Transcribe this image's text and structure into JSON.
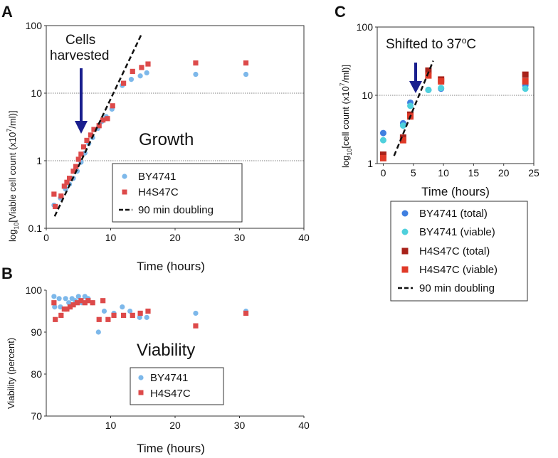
{
  "panels": {
    "A": "A",
    "B": "B",
    "C": "C"
  },
  "panel_a": {
    "ylabel_pre": "log",
    "ylabel_sub": "10",
    "ylabel_mid": "[Viable cell count (x10",
    "ylabel_sup": "7",
    "ylabel_post": "/ml)]",
    "annotation_line1": "Cells",
    "annotation_line2": "harvested",
    "big_label": "Growth",
    "legend": [
      "BY4741",
      "H4S47C",
      "90 min doubling"
    ]
  },
  "panel_b": {
    "big_label": "Viability",
    "legend": [
      "BY4741",
      "H4S47C"
    ]
  },
  "panel_c": {
    "ylabel_pre": "log",
    "ylabel_sub": "10",
    "ylabel_mid": "[cell count (x10",
    "ylabel_sup": "7",
    "ylabel_post": "/ml)]",
    "annotation_pre": "Shifted to 37",
    "annotation_sup": "o",
    "annotation_post": "C",
    "legend": [
      "BY4741 (total)",
      "BY4741 (viable)",
      "H4S47C (total)",
      "H4S47C (viable)",
      "90 min doubling"
    ]
  },
  "colors": {
    "by_light": "#7db8ea",
    "by_total": "#3f7fe0",
    "by_viable": "#4fd0dc",
    "h4_light": "#dd4a4a",
    "h4_total": "#a8221a",
    "h4_viable": "#e03a28",
    "arrow": "#1a1f8e"
  },
  "chart_data": [
    {
      "id": "A",
      "type": "scatter",
      "title": "Growth",
      "xlabel": "Time (hours)",
      "ylabel": "log10[Viable cell count (x10^7/ml)]",
      "yscale": "log",
      "xlim": [
        0,
        40
      ],
      "ylim": [
        0.1,
        100
      ],
      "xticks": [
        0,
        10,
        20,
        30,
        40
      ],
      "yticks": [
        0.1,
        1,
        10,
        100
      ],
      "ytick_labels": [
        "0.1",
        "1",
        "10",
        "100"
      ],
      "hgrid": [
        1,
        10
      ],
      "annotation_arrow_x": 5.5,
      "series": [
        {
          "name": "BY4741",
          "marker": "circle",
          "color_key": "by_light",
          "x": [
            1.2,
            2.2,
            3.0,
            3.6,
            4.2,
            4.8,
            5.4,
            6.0,
            6.6,
            7.2,
            8.0,
            8.6,
            9.3,
            10.2,
            11.8,
            13.2,
            14.6,
            15.6,
            23.2,
            31.0
          ],
          "y": [
            0.22,
            0.28,
            0.38,
            0.45,
            0.55,
            0.7,
            0.95,
            1.3,
            1.8,
            2.2,
            3.0,
            3.8,
            4.5,
            5.8,
            13.0,
            16.0,
            18.0,
            20.0,
            19.0,
            19.0
          ]
        },
        {
          "name": "H4S47C",
          "marker": "square",
          "color_key": "h4_light",
          "x": [
            1.2,
            1.4,
            2.3,
            2.8,
            3.2,
            3.6,
            4.2,
            4.6,
            5.0,
            5.4,
            5.8,
            6.3,
            6.9,
            7.4,
            8.2,
            8.8,
            9.5,
            10.3,
            12.0,
            13.4,
            14.8,
            15.8,
            23.2,
            31.0
          ],
          "y": [
            0.32,
            0.21,
            0.3,
            0.42,
            0.48,
            0.55,
            0.7,
            0.82,
            1.05,
            1.25,
            1.6,
            2.0,
            2.4,
            2.9,
            3.3,
            4.0,
            4.2,
            6.5,
            14.0,
            21.0,
            24.0,
            27.0,
            28.0,
            28.0
          ]
        },
        {
          "name": "90 min doubling",
          "style": "dashed",
          "x": [
            1.3,
            14.8
          ],
          "y": [
            0.15,
            75
          ]
        }
      ]
    },
    {
      "id": "B",
      "type": "scatter",
      "title": "Viability",
      "xlabel": "Time (hours)",
      "ylabel": "Viability (percent)",
      "xlim": [
        0,
        40
      ],
      "ylim": [
        70,
        100
      ],
      "xticks": [
        10,
        20,
        30,
        40
      ],
      "yticks": [
        70,
        80,
        90,
        100
      ],
      "series": [
        {
          "name": "BY4741",
          "marker": "circle",
          "color_key": "by_light",
          "x": [
            1.2,
            1.3,
            2.0,
            2.2,
            3.0,
            3.5,
            4.0,
            4.5,
            5.0,
            5.5,
            6.0,
            6.5,
            7.2,
            8.1,
            9.0,
            10.5,
            11.8,
            13.0,
            14.5,
            15.6,
            23.2,
            31.0
          ],
          "y": [
            98.5,
            96.0,
            98.0,
            96.0,
            98.0,
            97.0,
            98.0,
            97.5,
            98.5,
            97.0,
            98.5,
            98.0,
            97.0,
            90.0,
            95.0,
            94.5,
            96.0,
            95.0,
            93.5,
            93.5,
            94.5,
            95.0
          ],
          "_note": "values read off gridless axes"
        },
        {
          "name": "H4S47C",
          "marker": "square",
          "color_key": "h4_light",
          "x": [
            1.2,
            1.4,
            2.3,
            2.8,
            3.2,
            3.7,
            4.2,
            4.8,
            5.4,
            6.0,
            6.5,
            7.2,
            8.2,
            8.8,
            9.6,
            10.5,
            12.0,
            13.4,
            14.6,
            15.8,
            23.2,
            31.0
          ],
          "y": [
            97.0,
            93.0,
            94.0,
            95.5,
            95.5,
            96.0,
            96.5,
            97.0,
            97.5,
            97.0,
            97.5,
            97.0,
            93.0,
            97.5,
            93.0,
            94.0,
            94.0,
            94.0,
            94.5,
            95.0,
            91.5,
            94.5
          ]
        }
      ]
    },
    {
      "id": "C",
      "type": "scatter",
      "xlabel": "Time (hours)",
      "ylabel": "log10[cell count (x10^7/ml)]",
      "yscale": "log",
      "xlim": [
        -1,
        25
      ],
      "ylim": [
        1,
        100
      ],
      "xticks": [
        0,
        5,
        10,
        15,
        20,
        25
      ],
      "yticks": [
        1,
        10,
        100
      ],
      "ytick_labels": [
        "1",
        "10",
        "100"
      ],
      "hgrid": [
        10
      ],
      "annotation_arrow_x": 4.5,
      "series": [
        {
          "name": "BY4741 (total)",
          "marker": "circle",
          "color_key": "by_total",
          "x": [
            0,
            3.3,
            4.5,
            7.5,
            9.6,
            23.6
          ],
          "y": [
            2.8,
            3.9,
            7.8,
            12.0,
            12.5,
            14.0
          ]
        },
        {
          "name": "BY4741 (viable)",
          "marker": "circle",
          "color_key": "by_viable",
          "x": [
            0,
            3.3,
            4.5,
            7.5,
            9.6,
            23.6
          ],
          "y": [
            2.2,
            3.6,
            7.0,
            12.0,
            12.8,
            12.5
          ]
        },
        {
          "name": "H4S47C (total)",
          "marker": "square",
          "color_key": "h4_total",
          "x": [
            0,
            3.3,
            4.5,
            7.5,
            9.6,
            23.6
          ],
          "y": [
            1.35,
            2.4,
            5.2,
            23.0,
            17.0,
            20.0
          ]
        },
        {
          "name": "H4S47C (viable)",
          "marker": "square",
          "color_key": "h4_viable",
          "x": [
            0,
            3.3,
            4.5,
            7.5,
            9.6,
            23.6
          ],
          "y": [
            1.2,
            2.2,
            4.9,
            19.5,
            16.0,
            16.0
          ]
        },
        {
          "name": "90 min doubling",
          "style": "dashed",
          "x": [
            1.8,
            8.3
          ],
          "y": [
            1.3,
            32
          ]
        }
      ]
    }
  ]
}
